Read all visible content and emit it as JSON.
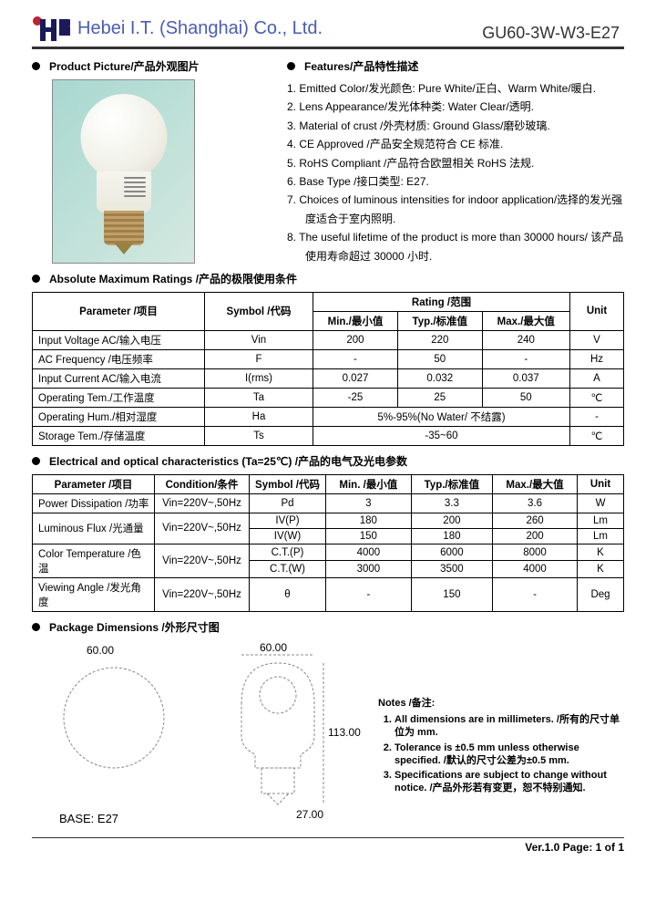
{
  "header": {
    "company": "Hebei I.T. (Shanghai) Co., Ltd.",
    "model": "GU60-3W-W3-E27"
  },
  "productPicture": {
    "title": "Product Picture/产品外观图片"
  },
  "features": {
    "title": "Features/产品特性描述",
    "items": [
      "1. Emitted Color/发光颜色: Pure White/正白、Warm White/暖白.",
      "2. Lens Appearance/发光体种类: Water Clear/透明.",
      "3. Material of crust /外壳材质: Ground Glass/磨砂玻璃.",
      "4. CE Approved /产品安全规范符合 CE 标准.",
      "5. RoHS Compliant /产品符合欧盟相关 RoHS 法规.",
      "6. Base Type /接口类型: E27.",
      "7. Choices of luminous intensities for indoor application/选择的发光强度适合于室内照明.",
      "8. The useful lifetime of the product is more than 30000 hours/ 该产品使用寿命超过 30000 小时."
    ]
  },
  "ratings": {
    "title": "Absolute Maximum Ratings /产品的极限使用条件",
    "header": {
      "parameter": "Parameter /项目",
      "symbol": "Symbol /代码",
      "rating": "Rating /范围",
      "min": "Min./最小值",
      "typ": "Typ./标准值",
      "max": "Max./最大值",
      "unit": "Unit"
    },
    "rows": [
      {
        "p": "Input Voltage AC/输入电压",
        "s": "Vin",
        "min": "200",
        "typ": "220",
        "max": "240",
        "u": "V"
      },
      {
        "p": "AC Frequency /电压频率",
        "s": "F",
        "min": "-",
        "typ": "50",
        "max": "-",
        "u": "Hz"
      },
      {
        "p": "Input Current AC/输入电流",
        "s": "I(rms)",
        "min": "0.027",
        "typ": "0.032",
        "max": "0.037",
        "u": "A"
      },
      {
        "p": "Operating Tem./工作温度",
        "s": "Ta",
        "min": "-25",
        "typ": "25",
        "max": "50",
        "u": "℃"
      },
      {
        "p": "Operating Hum./相对湿度",
        "s": "Ha",
        "span": "5%-95%(No Water/ 不结露)",
        "u": "-"
      },
      {
        "p": "Storage Tem./存储温度",
        "s": "Ts",
        "span": "-35~60",
        "u": "℃"
      }
    ]
  },
  "electrical": {
    "title": "Electrical and optical characteristics (Ta=25℃) /产品的电气及光电参数",
    "header": {
      "parameter": "Parameter /项目",
      "condition": "Condition/条件",
      "symbol": "Symbol /代码",
      "min": "Min. /最小值",
      "typ": "Typ./标准值",
      "max": "Max./最大值",
      "unit": "Unit"
    },
    "rows": [
      {
        "p": "Power Dissipation /功率",
        "c": "Vin=220V~,50Hz",
        "s": "Pd",
        "min": "3",
        "typ": "3.3",
        "max": "3.6",
        "u": "W"
      },
      {
        "p": "Luminous Flux /光通量",
        "c": "Vin=220V~,50Hz",
        "rowspan": 2,
        "s": "IV(P)",
        "min": "180",
        "typ": "200",
        "max": "260",
        "u": "Lm"
      },
      {
        "sub": true,
        "s": "IV(W)",
        "min": "150",
        "typ": "180",
        "max": "200",
        "u": "Lm"
      },
      {
        "p": "Color Temperature /色温",
        "c": "Vin=220V~,50Hz",
        "rowspan": 2,
        "s": "C.T.(P)",
        "min": "4000",
        "typ": "6000",
        "max": "8000",
        "u": "K"
      },
      {
        "sub": true,
        "s": "C.T.(W)",
        "min": "3000",
        "typ": "3500",
        "max": "4000",
        "u": "K"
      },
      {
        "p": "Viewing Angle /发光角度",
        "c": "Vin=220V~,50Hz",
        "s": "θ",
        "min": "-",
        "typ": "150",
        "max": "-",
        "u": "Deg"
      }
    ]
  },
  "dimensions": {
    "title": "Package Dimensions /外形尺寸图",
    "w1": "60.00",
    "w2": "60.00",
    "h": "113.00",
    "bw": "27.00",
    "base": "BASE: E27",
    "notesTitle": "Notes /备注:",
    "notes": [
      "All dimensions are in millimeters. /所有的尺寸单位为 mm.",
      "Tolerance is ±0.5 mm unless otherwise specified. /默认的尺寸公差为±0.5 mm.",
      "Specifications are subject to change without notice. /产品外形若有变更，恕不特别通知."
    ]
  },
  "footer": "Ver.1.0  Page:  1  of  1"
}
